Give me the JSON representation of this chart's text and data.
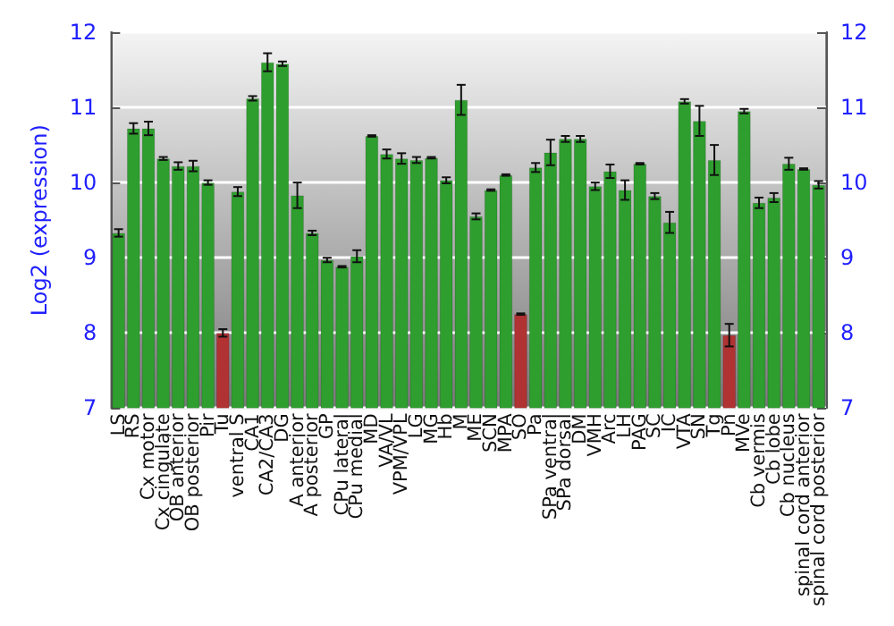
{
  "chart_data": {
    "type": "bar",
    "ylabel": "Log2 (expression)",
    "categories": [
      "LS",
      "RS",
      "Cx motor",
      "Cx cingulate",
      "OB anterior",
      "OB posterior",
      "Pir",
      "Tu",
      "ventral S",
      "CA1",
      "CA2/CA3",
      "DG",
      "A anterior",
      "A posterior",
      "GP",
      "CPu lateral",
      "CPu medial",
      "MD",
      "VA/VL",
      "VPM/VPL",
      "LG",
      "MG",
      "Hb",
      "M",
      "ME",
      "SCN",
      "MPA",
      "SO",
      "Pa",
      "SPa ventral",
      "SPa dorsal",
      "DM",
      "VMH",
      "Arc",
      "LH",
      "PAG",
      "SC",
      "IC",
      "VTA",
      "SN",
      "Tg",
      "Pn",
      "MVe",
      "Cb vermis",
      "Cb lobe",
      "Cb nucleus",
      "spinal cord anterior",
      "spinal cord posterior"
    ],
    "values": [
      9.33,
      10.72,
      10.72,
      10.32,
      10.22,
      10.22,
      10.0,
      8.0,
      9.88,
      11.12,
      11.6,
      11.58,
      9.83,
      9.33,
      8.97,
      8.88,
      9.02,
      10.62,
      10.38,
      10.32,
      10.3,
      10.33,
      10.03,
      11.1,
      9.55,
      9.9,
      10.1,
      8.25,
      10.2,
      10.4,
      10.58,
      10.58,
      9.95,
      10.15,
      9.9,
      10.25,
      9.82,
      9.47,
      11.08,
      10.82,
      10.3,
      7.97,
      10.95,
      9.73,
      9.8,
      10.25,
      10.18,
      9.97
    ],
    "errors": [
      0.05,
      0.07,
      0.09,
      0.02,
      0.05,
      0.07,
      0.03,
      0.05,
      0.06,
      0.03,
      0.12,
      0.03,
      0.17,
      0.03,
      0.03,
      0.01,
      0.08,
      0.01,
      0.06,
      0.07,
      0.04,
      0.01,
      0.04,
      0.2,
      0.04,
      0.01,
      0.01,
      0.01,
      0.06,
      0.17,
      0.04,
      0.04,
      0.05,
      0.09,
      0.13,
      0.01,
      0.04,
      0.14,
      0.03,
      0.2,
      0.2,
      0.15,
      0.03,
      0.07,
      0.06,
      0.08,
      0.01,
      0.05
    ],
    "colors": [
      "#2e9e2e",
      "#2e9e2e",
      "#2e9e2e",
      "#2e9e2e",
      "#2e9e2e",
      "#2e9e2e",
      "#2e9e2e",
      "#b03232",
      "#2e9e2e",
      "#2e9e2e",
      "#2e9e2e",
      "#2e9e2e",
      "#2e9e2e",
      "#2e9e2e",
      "#2e9e2e",
      "#2e9e2e",
      "#2e9e2e",
      "#2e9e2e",
      "#2e9e2e",
      "#2e9e2e",
      "#2e9e2e",
      "#2e9e2e",
      "#2e9e2e",
      "#2e9e2e",
      "#2e9e2e",
      "#2e9e2e",
      "#2e9e2e",
      "#b03232",
      "#2e9e2e",
      "#2e9e2e",
      "#2e9e2e",
      "#2e9e2e",
      "#2e9e2e",
      "#2e9e2e",
      "#2e9e2e",
      "#2e9e2e",
      "#2e9e2e",
      "#2e9e2e",
      "#2e9e2e",
      "#2e9e2e",
      "#2e9e2e",
      "#b03232",
      "#2e9e2e",
      "#2e9e2e",
      "#2e9e2e",
      "#2e9e2e",
      "#2e9e2e",
      "#2e9e2e"
    ],
    "ylim": [
      7,
      12
    ],
    "yticks": [
      7,
      8,
      9,
      10,
      11,
      12
    ],
    "y2lim": [
      7,
      12
    ],
    "y2ticks": [
      7,
      8,
      9,
      10,
      11,
      12
    ],
    "grid": "y"
  }
}
